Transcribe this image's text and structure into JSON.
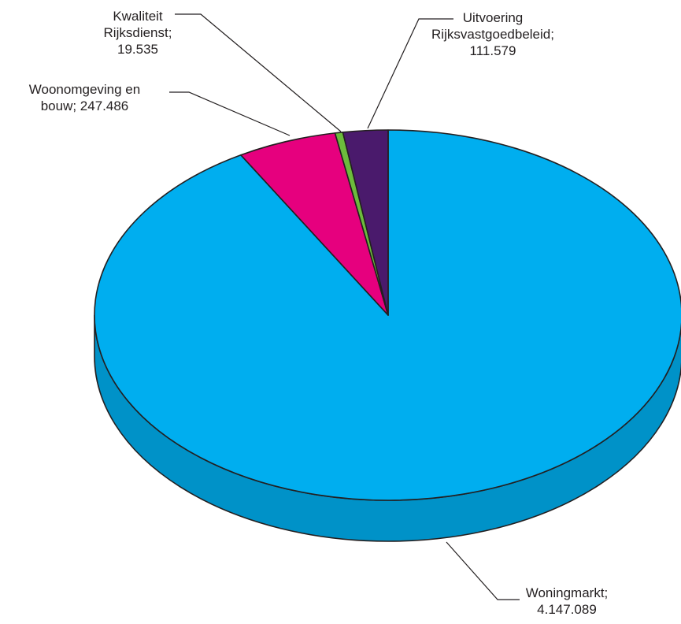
{
  "chart_data": {
    "type": "pie",
    "style": "3d",
    "slices": [
      {
        "name": "Woningmarkt",
        "value": 4147089,
        "value_text": "4.147.089",
        "color": "#00aeef",
        "side_color": "#0092c8"
      },
      {
        "name": "Woonomgeving en bouw",
        "value": 247486,
        "value_text": "247.486",
        "color": "#e6007e",
        "side_color": "#b80065"
      },
      {
        "name": "Kwaliteit Rijksdienst",
        "value": 19535,
        "value_text": "19.535",
        "color": "#6cbb3c",
        "side_color": "#4f942a"
      },
      {
        "name": "Uitvoering Rijksvastgoedbeleid",
        "value": 111579,
        "value_text": "111.579",
        "color": "#4a1a6c",
        "side_color": "#361250"
      }
    ]
  },
  "labels": {
    "woningmarkt": {
      "line1": "Woningmarkt;",
      "line2": "4.147.089"
    },
    "woonomgeving": {
      "line1": "Woonomgeving en",
      "line2": "bouw; 247.486"
    },
    "kwaliteit": {
      "line1": "Kwaliteit",
      "line2": "Rijksdienst;",
      "line3": "19.535"
    },
    "uitvoering": {
      "line1": "Uitvoering",
      "line2": "Rijksvastgoedbeleid;",
      "line3": "111.579"
    }
  }
}
